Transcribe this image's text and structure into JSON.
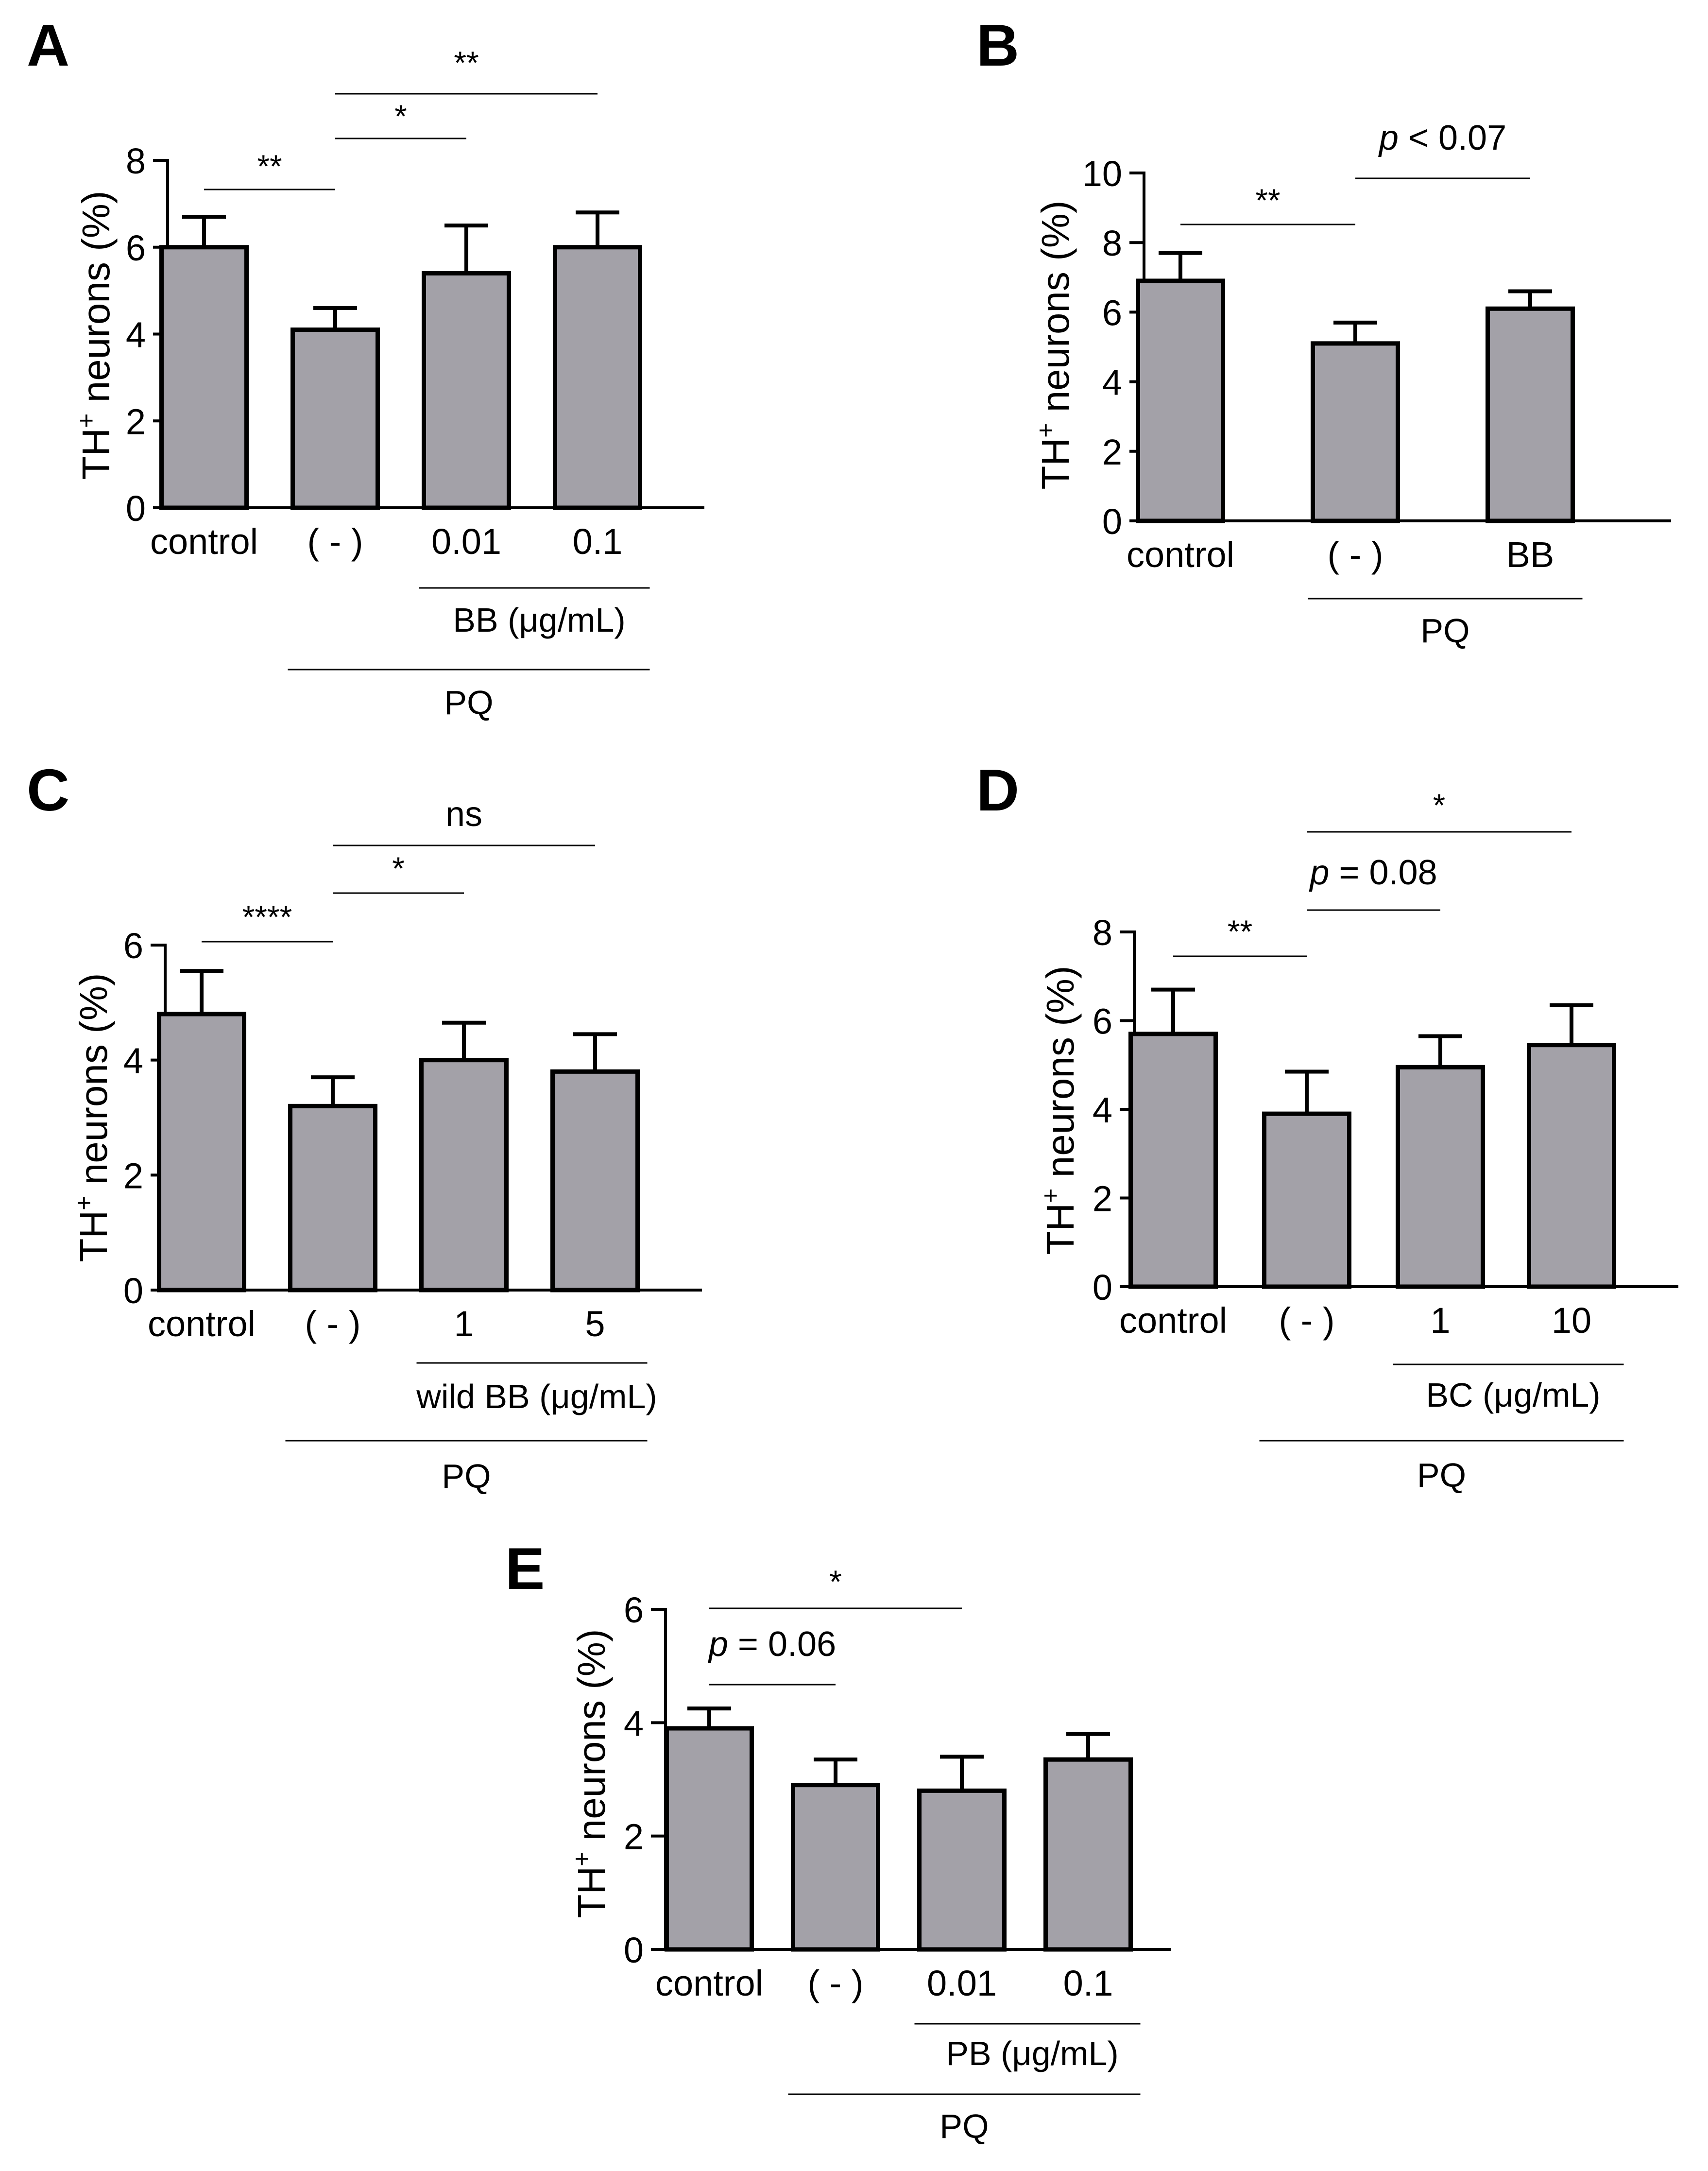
{
  "chart_data": [
    {
      "panel": "A",
      "type": "bar",
      "ylabel": "TH",
      "ylabel_sup": "+",
      "ylabel_rest": " neurons (%)",
      "ylim": [
        0,
        8
      ],
      "yticks": [
        "0",
        "2",
        "4",
        "6",
        "8"
      ],
      "categories": [
        "control",
        "( - )",
        "0.01",
        "0.1"
      ],
      "values": [
        6.0,
        4.1,
        5.4,
        6.0
      ],
      "errors": [
        0.7,
        0.5,
        1.1,
        0.8
      ],
      "significance": [
        {
          "from": 0,
          "to": 1,
          "label": "**"
        },
        {
          "from": 1,
          "to": 2,
          "label": "*"
        },
        {
          "from": 1,
          "to": 3,
          "label": "**"
        }
      ],
      "groups": [
        {
          "from": 2,
          "to": 3,
          "label": "BB (μg/mL)"
        },
        {
          "from": 1,
          "to": 3,
          "label": "PQ"
        }
      ]
    },
    {
      "panel": "B",
      "type": "bar",
      "ylabel": "TH",
      "ylabel_sup": "+",
      "ylabel_rest": " neurons (%)",
      "ylim": [
        0,
        10
      ],
      "yticks": [
        "0",
        "2",
        "4",
        "6",
        "8",
        "10"
      ],
      "categories": [
        "control",
        "( - )",
        "BB"
      ],
      "values": [
        6.9,
        5.1,
        6.1
      ],
      "errors": [
        0.8,
        0.6,
        0.5
      ],
      "significance": [
        {
          "from": 0,
          "to": 1,
          "label": "**"
        },
        {
          "from": 1,
          "to": 2,
          "label_italic": "p",
          "label": " < 0.07"
        }
      ],
      "groups": [
        {
          "from": 1,
          "to": 2,
          "label": "PQ"
        }
      ]
    },
    {
      "panel": "C",
      "type": "bar",
      "ylabel": "TH",
      "ylabel_sup": "+",
      "ylabel_rest": " neurons (%)",
      "ylim": [
        0,
        6
      ],
      "yticks": [
        "0",
        "2",
        "4",
        "6"
      ],
      "categories": [
        "control",
        "( - )",
        "1",
        "5"
      ],
      "values": [
        4.8,
        3.2,
        4.0,
        3.8
      ],
      "errors": [
        0.75,
        0.5,
        0.65,
        0.65
      ],
      "significance": [
        {
          "from": 0,
          "to": 1,
          "label": "****"
        },
        {
          "from": 1,
          "to": 2,
          "label": "*"
        },
        {
          "from": 1,
          "to": 3,
          "label": "ns"
        }
      ],
      "groups": [
        {
          "from": 2,
          "to": 3,
          "label": "wild BB (μg/mL)"
        },
        {
          "from": 1,
          "to": 3,
          "label": "PQ"
        }
      ]
    },
    {
      "panel": "D",
      "type": "bar",
      "ylabel": "TH",
      "ylabel_sup": "+",
      "ylabel_rest": " neurons (%)",
      "ylim": [
        0,
        8
      ],
      "yticks": [
        "0",
        "2",
        "4",
        "6",
        "8"
      ],
      "categories": [
        "control",
        "( - )",
        "1",
        "10"
      ],
      "values": [
        5.7,
        3.9,
        4.95,
        5.45
      ],
      "errors": [
        1.0,
        0.95,
        0.7,
        0.9
      ],
      "significance": [
        {
          "from": 0,
          "to": 1,
          "label": "**"
        },
        {
          "from": 1,
          "to": 2,
          "label_italic": "p",
          "label": " = 0.08"
        },
        {
          "from": 1,
          "to": 3,
          "label": "*"
        }
      ],
      "groups": [
        {
          "from": 2,
          "to": 3,
          "label": "BC (μg/mL)"
        },
        {
          "from": 1,
          "to": 3,
          "label": "PQ"
        }
      ]
    },
    {
      "panel": "E",
      "type": "bar",
      "ylabel": "TH",
      "ylabel_sup": "+",
      "ylabel_rest": " neurons (%)",
      "ylim": [
        0,
        6
      ],
      "yticks": [
        "0",
        "2",
        "4",
        "6"
      ],
      "categories": [
        "control",
        "( - )",
        "0.01",
        "0.1"
      ],
      "values": [
        3.9,
        2.9,
        2.8,
        3.35
      ],
      "errors": [
        0.35,
        0.45,
        0.6,
        0.45
      ],
      "significance": [
        {
          "from": 0,
          "to": 1,
          "label_italic": "p",
          "label": " = 0.06"
        },
        {
          "from": 0,
          "to": 2,
          "label": "*"
        }
      ],
      "groups": [
        {
          "from": 2,
          "to": 3,
          "label": "PB (μg/mL)"
        },
        {
          "from": 1,
          "to": 3,
          "label": "PQ"
        }
      ]
    }
  ]
}
